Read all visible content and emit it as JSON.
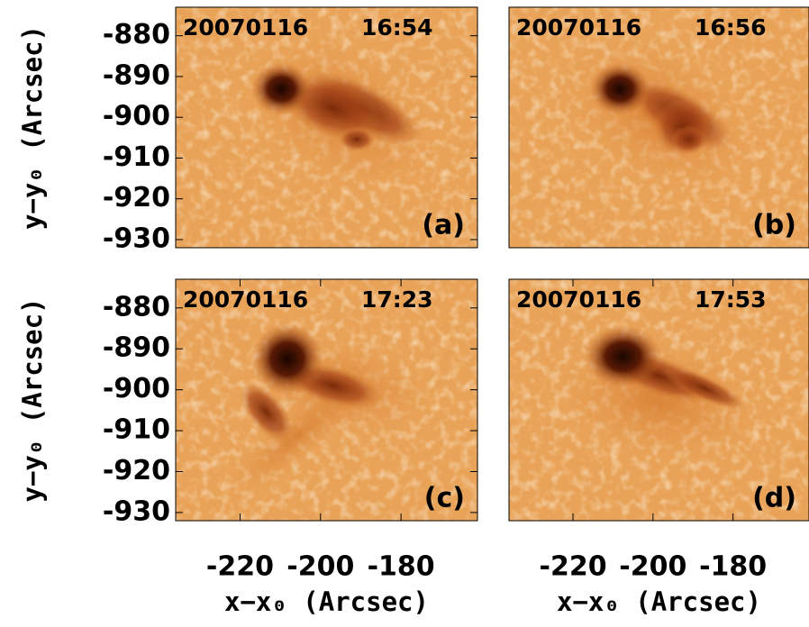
{
  "chart_data": [
    {
      "type": "image",
      "date": "20070116",
      "time": "16:54",
      "label": "(a)",
      "xlim": [
        -236,
        -161
      ],
      "ylim": [
        -932,
        -873
      ],
      "yticks": [
        -880,
        -890,
        -900,
        -910,
        -920,
        -930
      ],
      "ylabel": "y−y₀ (Arcsec)"
    },
    {
      "type": "image",
      "date": "20070116",
      "time": "16:56",
      "label": "(b)",
      "xlim": [
        -236,
        -161
      ],
      "ylim": [
        -932,
        -873
      ]
    },
    {
      "type": "image",
      "date": "20070116",
      "time": "17:23",
      "label": "(c)",
      "xlim": [
        -236,
        -161
      ],
      "ylim": [
        -932,
        -873
      ],
      "yticks": [
        -880,
        -890,
        -900,
        -910,
        -920,
        -930
      ],
      "xticks": [
        -220,
        -200,
        -180
      ],
      "ylabel": "y−y₀ (Arcsec)",
      "xlabel": "x−x₀ (Arcsec)"
    },
    {
      "type": "image",
      "date": "20070116",
      "time": "17:53",
      "label": "(d)",
      "xlim": [
        -236,
        -161
      ],
      "ylim": [
        -932,
        -873
      ],
      "xticks": [
        -220,
        -200,
        -180
      ],
      "xlabel": "x−x₀ (Arcsec)"
    }
  ]
}
